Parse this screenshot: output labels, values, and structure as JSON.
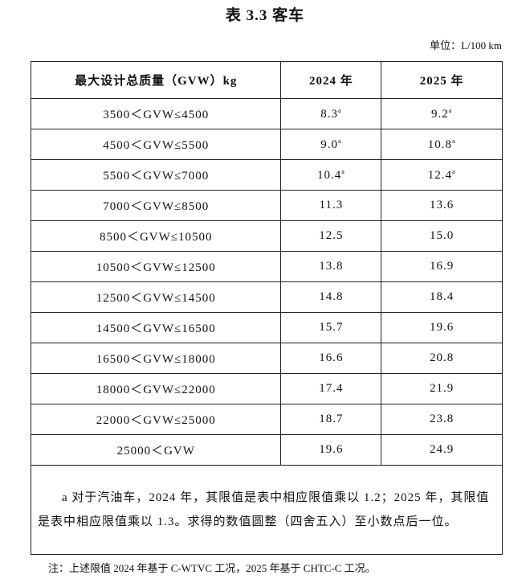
{
  "title": "表 3.3 客车",
  "unit": "单位：L/100 km",
  "table": {
    "header": [
      "最大设计总质量（GVW）kg",
      "2024 年",
      "2025 年"
    ],
    "rows": [
      [
        {
          "text": "3500＜GVW≤4500"
        },
        {
          "text": "8.3",
          "sup": "a"
        },
        {
          "text": "9.2",
          "sup": "a"
        }
      ],
      [
        {
          "text": "4500＜GVW≤5500"
        },
        {
          "text": "9.0",
          "sup": "a"
        },
        {
          "text": "10.8",
          "sup": "a"
        }
      ],
      [
        {
          "text": "5500＜GVW≤7000"
        },
        {
          "text": "10.4",
          "sup": "a"
        },
        {
          "text": "12.4",
          "sup": "a"
        }
      ],
      [
        {
          "text": "7000＜GVW≤8500"
        },
        {
          "text": "11.3"
        },
        {
          "text": "13.6"
        }
      ],
      [
        {
          "text": "8500＜GVW≤10500"
        },
        {
          "text": "12.5"
        },
        {
          "text": "15.0"
        }
      ],
      [
        {
          "text": "10500＜GVW≤12500"
        },
        {
          "text": "13.8"
        },
        {
          "text": "16.9"
        }
      ],
      [
        {
          "text": "12500＜GVW≤14500"
        },
        {
          "text": "14.8"
        },
        {
          "text": "18.4"
        }
      ],
      [
        {
          "text": "14500＜GVW≤16500"
        },
        {
          "text": "15.7"
        },
        {
          "text": "19.6"
        }
      ],
      [
        {
          "text": "16500＜GVW≤18000"
        },
        {
          "text": "16.6"
        },
        {
          "text": "20.8"
        }
      ],
      [
        {
          "text": "18000＜GVW≤22000"
        },
        {
          "text": "17.4"
        },
        {
          "text": "21.9"
        }
      ],
      [
        {
          "text": "22000＜GVW≤25000"
        },
        {
          "text": "18.7"
        },
        {
          "text": "23.8"
        }
      ],
      [
        {
          "text": "25000＜GVW"
        },
        {
          "text": "19.6"
        },
        {
          "text": "24.9"
        }
      ]
    ],
    "footnote": "a 对于汽油车，2024 年，其限值是表中相应限值乘以 1.2；2025 年，其限值是表中相应限值乘以 1.3。求得的数值圆整（四舍五入）至小数点后一位。"
  },
  "note": "注：上述限值 2024 年基于 C-WTVC 工况，2025 年基于 CHTC-C 工况。"
}
